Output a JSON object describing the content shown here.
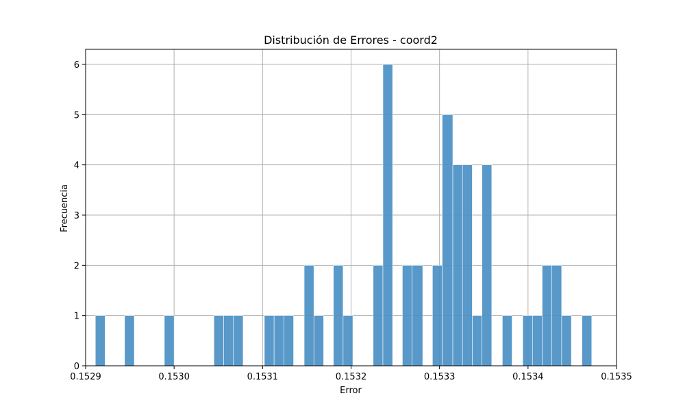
{
  "chart_data": {
    "type": "bar",
    "title": "Distribución de Errores - coord2",
    "xlabel": "Error",
    "ylabel": "Frecuencia",
    "xlim": [
      0.1529,
      0.1535
    ],
    "ylim": [
      0,
      6.3
    ],
    "grid": true,
    "color": "#4a90c4",
    "xticks": [
      {
        "value": 0.1529,
        "label": "0.1529"
      },
      {
        "value": 0.153,
        "label": "0.1530"
      },
      {
        "value": 0.1531,
        "label": "0.1531"
      },
      {
        "value": 0.1532,
        "label": "0.1532"
      },
      {
        "value": 0.1533,
        "label": "0.1533"
      },
      {
        "value": 0.1534,
        "label": "0.1534"
      },
      {
        "value": 0.1535,
        "label": "0.1535"
      }
    ],
    "yticks": [
      {
        "value": 0,
        "label": "0"
      },
      {
        "value": 1,
        "label": "1"
      },
      {
        "value": 2,
        "label": "2"
      },
      {
        "value": 3,
        "label": "3"
      },
      {
        "value": 4,
        "label": "4"
      },
      {
        "value": 5,
        "label": "5"
      },
      {
        "value": 6,
        "label": "6"
      }
    ],
    "bins": [
      {
        "x0": 0.152911,
        "x1": 0.152922,
        "count": 1
      },
      {
        "x0": 0.152944,
        "x1": 0.152955,
        "count": 1
      },
      {
        "x0": 0.152989,
        "x1": 0.153,
        "count": 1
      },
      {
        "x0": 0.153045,
        "x1": 0.153056,
        "count": 1
      },
      {
        "x0": 0.153056,
        "x1": 0.153067,
        "count": 1
      },
      {
        "x0": 0.153067,
        "x1": 0.153078,
        "count": 1
      },
      {
        "x0": 0.153102,
        "x1": 0.153113,
        "count": 1
      },
      {
        "x0": 0.153113,
        "x1": 0.153124,
        "count": 1
      },
      {
        "x0": 0.153124,
        "x1": 0.153135,
        "count": 1
      },
      {
        "x0": 0.153147,
        "x1": 0.153158,
        "count": 2
      },
      {
        "x0": 0.153158,
        "x1": 0.153169,
        "count": 1
      },
      {
        "x0": 0.15318,
        "x1": 0.153191,
        "count": 2
      },
      {
        "x0": 0.153191,
        "x1": 0.153202,
        "count": 1
      },
      {
        "x0": 0.153225,
        "x1": 0.153236,
        "count": 2
      },
      {
        "x0": 0.153236,
        "x1": 0.153247,
        "count": 6
      },
      {
        "x0": 0.153258,
        "x1": 0.153269,
        "count": 2
      },
      {
        "x0": 0.153269,
        "x1": 0.153281,
        "count": 2
      },
      {
        "x0": 0.153292,
        "x1": 0.153303,
        "count": 2
      },
      {
        "x0": 0.153303,
        "x1": 0.153315,
        "count": 5
      },
      {
        "x0": 0.153315,
        "x1": 0.153326,
        "count": 4
      },
      {
        "x0": 0.153326,
        "x1": 0.153337,
        "count": 4
      },
      {
        "x0": 0.153337,
        "x1": 0.153348,
        "count": 1
      },
      {
        "x0": 0.153348,
        "x1": 0.153359,
        "count": 4
      },
      {
        "x0": 0.153371,
        "x1": 0.153382,
        "count": 1
      },
      {
        "x0": 0.153394,
        "x1": 0.153405,
        "count": 1
      },
      {
        "x0": 0.153405,
        "x1": 0.153416,
        "count": 1
      },
      {
        "x0": 0.153416,
        "x1": 0.153427,
        "count": 2
      },
      {
        "x0": 0.153427,
        "x1": 0.153438,
        "count": 2
      },
      {
        "x0": 0.153438,
        "x1": 0.153449,
        "count": 1
      },
      {
        "x0": 0.153461,
        "x1": 0.153472,
        "count": 1
      }
    ]
  }
}
